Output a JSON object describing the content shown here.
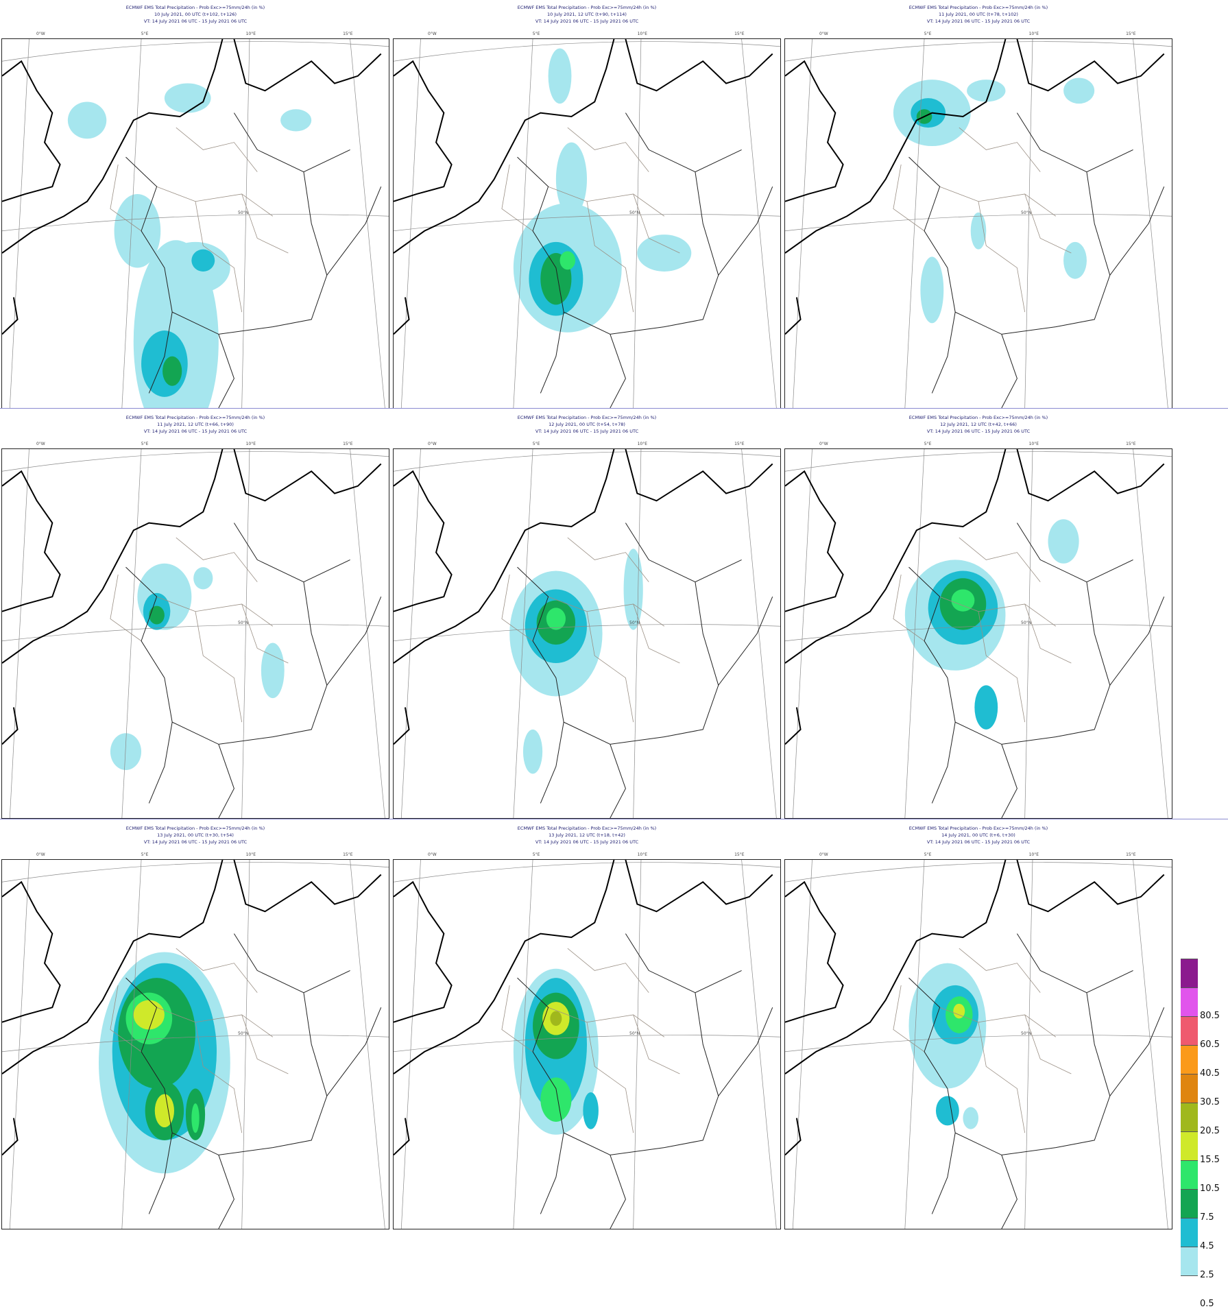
{
  "panels": [
    {
      "line1": "ECMWF EMS Total Precipitation - Prob Exc>=75mm/24h (in %)",
      "line2": "10 July 2021, 00 UTC (t+102, t+126)",
      "line3": "VT: 14 July 2021 06 UTC - 15 July 2021 06 UTC"
    },
    {
      "line1": "ECMWF EMS Total Precipitation - Prob Exc>=75mm/24h (in %)",
      "line2": "10 July 2021, 12 UTC (t+90, t+114)",
      "line3": "VT: 14 July 2021 06 UTC - 15 July 2021 06 UTC"
    },
    {
      "line1": "ECMWF EMS Total Precipitation - Prob Exc>=75mm/24h (in %)",
      "line2": "11 July 2021, 00 UTC (t+78, t+102)",
      "line3": "VT: 14 July 2021 06 UTC - 15 July 2021 06 UTC"
    },
    {
      "line1": "ECMWF EMS Total Precipitation - Prob Exc>=75mm/24h (in %)",
      "line2": "11 July 2021, 12 UTC (t+66, t+90)",
      "line3": "VT: 14 July 2021 06 UTC - 15 July 2021 06 UTC"
    },
    {
      "line1": "ECMWF EMS Total Precipitation - Prob Exc>=75mm/24h (in %)",
      "line2": "12 July 2021, 00 UTC (t+54, t+78)",
      "line3": "VT: 14 July 2021 06 UTC - 15 July 2021 06 UTC"
    },
    {
      "line1": "ECMWF EMS Total Precipitation - Prob Exc>=75mm/24h (in %)",
      "line2": "12 July 2021, 12 UTC (t+42, t+66)",
      "line3": "VT: 14 July 2021 06 UTC - 15 July 2021 06 UTC"
    },
    {
      "line1": "ECMWF EMS Total Precipitation - Prob Exc>=75mm/24h (in %)",
      "line2": "13 July 2021, 00 UTC (t+30, t+54)",
      "line3": "VT: 14 July 2021 06 UTC - 15 July 2021 06 UTC"
    },
    {
      "line1": "ECMWF EMS Total Precipitation - Prob Exc>=75mm/24h (in %)",
      "line2": "13 July 2021, 12 UTC (t+18, t+42)",
      "line3": "VT: 14 July 2021 06 UTC - 15 July 2021 06 UTC"
    },
    {
      "line1": "ECMWF EMS Total Precipitation - Prob Exc>=75mm/24h (in %)",
      "line2": "14 July 2021, 00 UTC (t+6, t+30)",
      "line3": "VT: 14 July 2021 06 UTC - 15 July 2021 06 UTC"
    }
  ],
  "ticks": {
    "lon": [
      "0°W",
      "5°E",
      "10°E",
      "15°E"
    ],
    "lat50": "50°N"
  },
  "legend": {
    "labels": [
      "0.5",
      "2.5",
      "4.5",
      "7.5",
      "10.5",
      "15.5",
      "20.5",
      "30.5",
      "40.5",
      "60.5",
      "80.5"
    ],
    "colors": [
      "#ffffff",
      "#a6e6ee",
      "#1fbdd2",
      "#13a552",
      "#2ee66b",
      "#cfe92a",
      "#a0b81c",
      "#df8510",
      "#fb9a1a",
      "#ef5a6e",
      "#e155ec",
      "#8b1a8e"
    ]
  },
  "fields": [
    [
      [
        0.45,
        0.82,
        0.22,
        0.55,
        1
      ],
      [
        0.35,
        0.52,
        0.12,
        0.2,
        1
      ],
      [
        0.5,
        0.62,
        0.18,
        0.14,
        1
      ],
      [
        0.22,
        0.22,
        0.1,
        0.1,
        1
      ],
      [
        0.48,
        0.16,
        0.12,
        0.08,
        1
      ],
      [
        0.42,
        0.88,
        0.12,
        0.18,
        2
      ],
      [
        0.44,
        0.9,
        0.05,
        0.08,
        3
      ],
      [
        0.76,
        0.22,
        0.08,
        0.06,
        1
      ],
      [
        0.52,
        0.6,
        0.06,
        0.06,
        2
      ]
    ],
    [
      [
        0.45,
        0.62,
        0.28,
        0.35,
        1
      ],
      [
        0.42,
        0.65,
        0.14,
        0.2,
        2
      ],
      [
        0.42,
        0.65,
        0.08,
        0.14,
        3
      ],
      [
        0.46,
        0.38,
        0.08,
        0.2,
        1
      ],
      [
        0.43,
        0.1,
        0.06,
        0.15,
        1
      ],
      [
        0.7,
        0.58,
        0.14,
        0.1,
        1
      ],
      [
        0.45,
        0.6,
        0.04,
        0.05,
        4
      ]
    ],
    [
      [
        0.38,
        0.2,
        0.2,
        0.18,
        1
      ],
      [
        0.37,
        0.2,
        0.09,
        0.08,
        2
      ],
      [
        0.36,
        0.21,
        0.04,
        0.04,
        3
      ],
      [
        0.52,
        0.14,
        0.1,
        0.06,
        1
      ],
      [
        0.76,
        0.14,
        0.08,
        0.07,
        1
      ],
      [
        0.38,
        0.68,
        0.06,
        0.18,
        1
      ],
      [
        0.5,
        0.52,
        0.04,
        0.1,
        1
      ],
      [
        0.75,
        0.6,
        0.06,
        0.1,
        1
      ]
    ],
    [
      [
        0.42,
        0.4,
        0.14,
        0.18,
        1
      ],
      [
        0.4,
        0.44,
        0.07,
        0.1,
        2
      ],
      [
        0.4,
        0.45,
        0.04,
        0.05,
        3
      ],
      [
        0.7,
        0.6,
        0.06,
        0.15,
        1
      ],
      [
        0.32,
        0.82,
        0.08,
        0.1,
        1
      ],
      [
        0.52,
        0.35,
        0.05,
        0.06,
        1
      ]
    ],
    [
      [
        0.42,
        0.5,
        0.24,
        0.34,
        1
      ],
      [
        0.42,
        0.48,
        0.16,
        0.2,
        2
      ],
      [
        0.42,
        0.47,
        0.1,
        0.12,
        3
      ],
      [
        0.42,
        0.46,
        0.05,
        0.06,
        4
      ],
      [
        0.62,
        0.38,
        0.05,
        0.22,
        1
      ],
      [
        0.36,
        0.82,
        0.05,
        0.12,
        1
      ]
    ],
    [
      [
        0.44,
        0.45,
        0.26,
        0.3,
        1
      ],
      [
        0.46,
        0.43,
        0.18,
        0.2,
        2
      ],
      [
        0.46,
        0.42,
        0.12,
        0.14,
        3
      ],
      [
        0.46,
        0.41,
        0.06,
        0.06,
        4
      ],
      [
        0.52,
        0.7,
        0.06,
        0.12,
        2
      ],
      [
        0.72,
        0.25,
        0.08,
        0.12,
        1
      ]
    ],
    [
      [
        0.42,
        0.55,
        0.34,
        0.6,
        1
      ],
      [
        0.42,
        0.52,
        0.27,
        0.48,
        2
      ],
      [
        0.4,
        0.47,
        0.2,
        0.3,
        3
      ],
      [
        0.38,
        0.43,
        0.12,
        0.14,
        4
      ],
      [
        0.38,
        0.42,
        0.08,
        0.08,
        5
      ],
      [
        0.42,
        0.68,
        0.1,
        0.16,
        3
      ],
      [
        0.42,
        0.68,
        0.05,
        0.09,
        5
      ],
      [
        0.5,
        0.69,
        0.05,
        0.14,
        3
      ],
      [
        0.5,
        0.7,
        0.02,
        0.08,
        4
      ]
    ],
    [
      [
        0.42,
        0.52,
        0.22,
        0.45,
        1
      ],
      [
        0.42,
        0.5,
        0.16,
        0.36,
        2
      ],
      [
        0.42,
        0.45,
        0.12,
        0.18,
        3
      ],
      [
        0.42,
        0.43,
        0.07,
        0.09,
        5
      ],
      [
        0.42,
        0.43,
        0.03,
        0.04,
        6
      ],
      [
        0.42,
        0.65,
        0.08,
        0.12,
        4
      ],
      [
        0.51,
        0.68,
        0.04,
        0.1,
        2
      ]
    ],
    [
      [
        0.42,
        0.45,
        0.2,
        0.34,
        1
      ],
      [
        0.44,
        0.42,
        0.12,
        0.16,
        2
      ],
      [
        0.45,
        0.42,
        0.07,
        0.1,
        4
      ],
      [
        0.45,
        0.41,
        0.03,
        0.04,
        5
      ],
      [
        0.42,
        0.68,
        0.06,
        0.08,
        2
      ],
      [
        0.48,
        0.7,
        0.04,
        0.06,
        1
      ]
    ]
  ]
}
